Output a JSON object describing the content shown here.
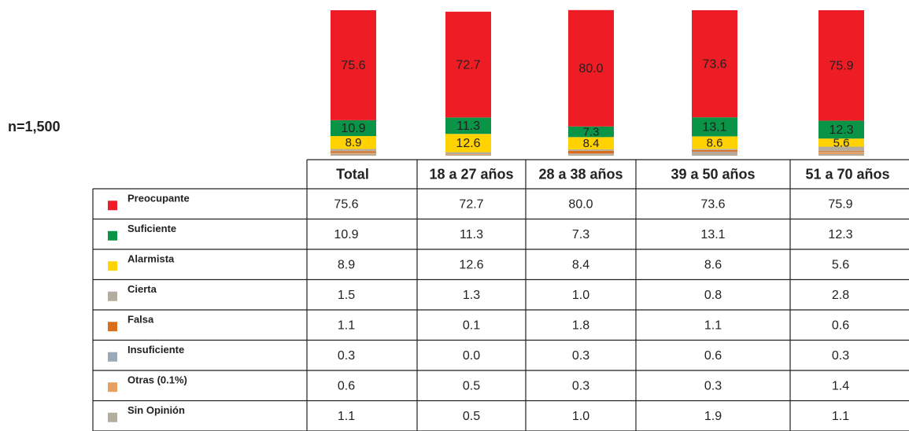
{
  "chart_data": {
    "type": "bar",
    "sample_size": "n=1,500",
    "categories": [
      "Total",
      "18 a 27 años",
      "28 a 38 años",
      "39 a 50 años",
      "51 a 70 años"
    ],
    "series": [
      {
        "name": "Preocupante",
        "color": "#ee1c25",
        "values": [
          75.6,
          72.7,
          80.0,
          73.6,
          75.9
        ],
        "value_labels": [
          "75.6",
          "72.7",
          "80.0",
          "73.6",
          "75.9"
        ]
      },
      {
        "name": "Suficiente",
        "color": "#0a9447",
        "values": [
          10.9,
          11.3,
          7.3,
          13.1,
          12.3
        ],
        "value_labels": [
          "10.9",
          "11.3",
          "7.3",
          "13.1",
          "12.3"
        ]
      },
      {
        "name": "Alarmista",
        "color": "#ffd200",
        "values": [
          8.9,
          12.6,
          8.4,
          8.6,
          5.6
        ],
        "value_labels": [
          "8.9",
          "12.6",
          "8.4",
          "8.6",
          "5.6"
        ]
      },
      {
        "name": "Cierta",
        "color": "#b5aca0",
        "values": [
          1.5,
          1.3,
          1.0,
          0.8,
          2.8
        ],
        "value_labels": [
          "1.5",
          "1.3",
          "1.0",
          "0.8",
          "2.8"
        ]
      },
      {
        "name": "Falsa",
        "color": "#d96d1a",
        "values": [
          1.1,
          0.1,
          1.8,
          1.1,
          0.6
        ],
        "value_labels": [
          "1.1",
          "0.1",
          "1.8",
          "1.1",
          "0.6"
        ]
      },
      {
        "name": "Insuficiente",
        "color": "#9aa8b8",
        "values": [
          0.3,
          0.0,
          0.3,
          0.6,
          0.3
        ],
        "value_labels": [
          "0.3",
          "0.0",
          "0.3",
          "0.6",
          "0.3"
        ]
      },
      {
        "name": "Otras (0.1%)",
        "color": "#e8a060",
        "values": [
          0.6,
          0.5,
          0.3,
          0.3,
          1.4
        ],
        "value_labels": [
          "0.6",
          "0.5",
          "0.3",
          "0.3",
          "1.4"
        ]
      },
      {
        "name": "Sin Opinión",
        "color": "#b5aca0",
        "values": [
          1.1,
          0.5,
          1.0,
          1.9,
          1.1
        ],
        "value_labels": [
          "1.1",
          "0.5",
          "1.0",
          "1.9",
          "1.1"
        ]
      }
    ]
  }
}
